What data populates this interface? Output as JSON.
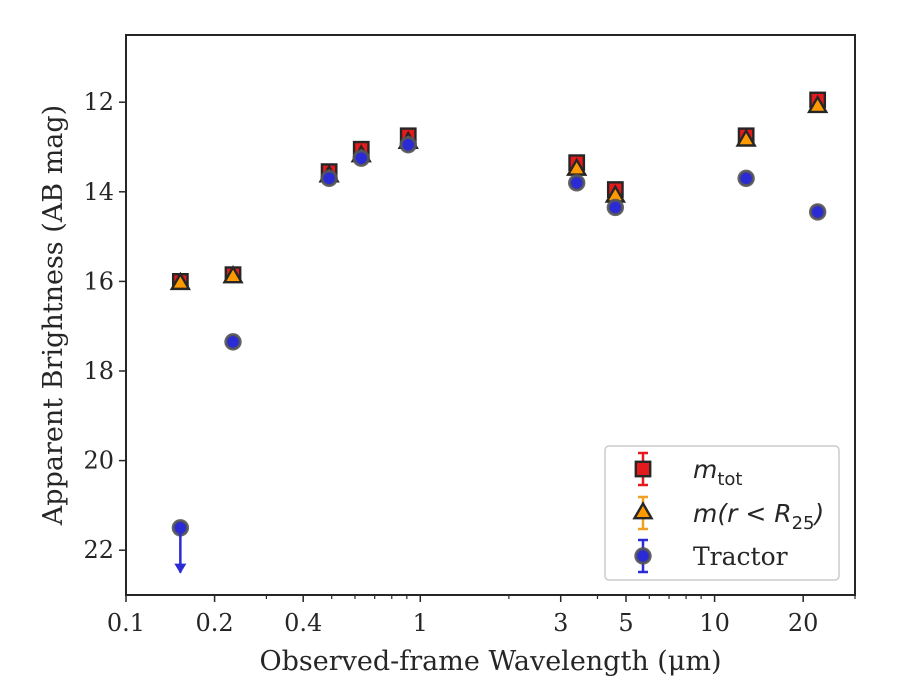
{
  "chart_data": {
    "type": "scatter",
    "xlabel": "Observed-frame Wavelength (μm)",
    "ylabel": "Apparent Brightness (AB mag)",
    "xscale": "log",
    "xlim": [
      0.1,
      30
    ],
    "ylim": [
      23,
      10.5
    ],
    "y_inverted": true,
    "grid": false,
    "legend_position": "lower-right",
    "x_ticks": [
      {
        "value": 0.1,
        "label": "0.1"
      },
      {
        "value": 0.2,
        "label": "0.2"
      },
      {
        "value": 0.4,
        "label": "0.4"
      },
      {
        "value": 1,
        "label": "1"
      },
      {
        "value": 3,
        "label": "3"
      },
      {
        "value": 5,
        "label": "5"
      },
      {
        "value": 10,
        "label": "10"
      },
      {
        "value": 20,
        "label": "20"
      }
    ],
    "y_ticks": [
      {
        "value": 12,
        "label": "12"
      },
      {
        "value": 14,
        "label": "14"
      },
      {
        "value": 16,
        "label": "16"
      },
      {
        "value": 18,
        "label": "18"
      },
      {
        "value": 20,
        "label": "20"
      },
      {
        "value": 22,
        "label": "22"
      }
    ],
    "series": [
      {
        "name": "m_tot",
        "marker": "square",
        "face": "#e41a1c",
        "errcolor": "#e41a1c",
        "points": [
          {
            "x": 0.153,
            "y": 16.0
          },
          {
            "x": 0.231,
            "y": 15.85
          },
          {
            "x": 0.49,
            "y": 13.55
          },
          {
            "x": 0.63,
            "y": 13.05
          },
          {
            "x": 0.91,
            "y": 12.75
          },
          {
            "x": 3.4,
            "y": 13.35
          },
          {
            "x": 4.6,
            "y": 13.95
          },
          {
            "x": 12.8,
            "y": 12.75
          },
          {
            "x": 22.4,
            "y": 11.95
          }
        ]
      },
      {
        "name": "m(r < R25)",
        "marker": "triangle",
        "face": "#ff9900",
        "errcolor": "#f0a020",
        "points": [
          {
            "x": 0.153,
            "y": 16.05
          },
          {
            "x": 0.231,
            "y": 15.9
          },
          {
            "x": 0.49,
            "y": 13.65
          },
          {
            "x": 0.63,
            "y": 13.2
          },
          {
            "x": 0.91,
            "y": 12.9
          },
          {
            "x": 3.4,
            "y": 13.5
          },
          {
            "x": 4.6,
            "y": 14.1
          },
          {
            "x": 12.8,
            "y": 12.85
          },
          {
            "x": 22.4,
            "y": 12.1
          }
        ]
      },
      {
        "name": "Tractor",
        "marker": "circle",
        "face": "#2b2bd6",
        "errcolor": "#2b2bd6",
        "points": [
          {
            "x": 0.153,
            "y": 21.5,
            "upper_limit": true
          },
          {
            "x": 0.231,
            "y": 17.35
          },
          {
            "x": 0.49,
            "y": 13.7
          },
          {
            "x": 0.63,
            "y": 13.25
          },
          {
            "x": 0.91,
            "y": 12.95
          },
          {
            "x": 3.4,
            "y": 13.8
          },
          {
            "x": 4.6,
            "y": 14.35
          },
          {
            "x": 12.8,
            "y": 13.7
          },
          {
            "x": 22.4,
            "y": 14.45
          }
        ]
      }
    ]
  },
  "legend": {
    "entries": [
      {
        "marker": "square",
        "base": "m",
        "sub": "tot"
      },
      {
        "marker": "triangle",
        "pre": "m(r < R",
        "sub": "25",
        "post": ")"
      },
      {
        "marker": "circle",
        "text": "Tractor"
      }
    ]
  }
}
